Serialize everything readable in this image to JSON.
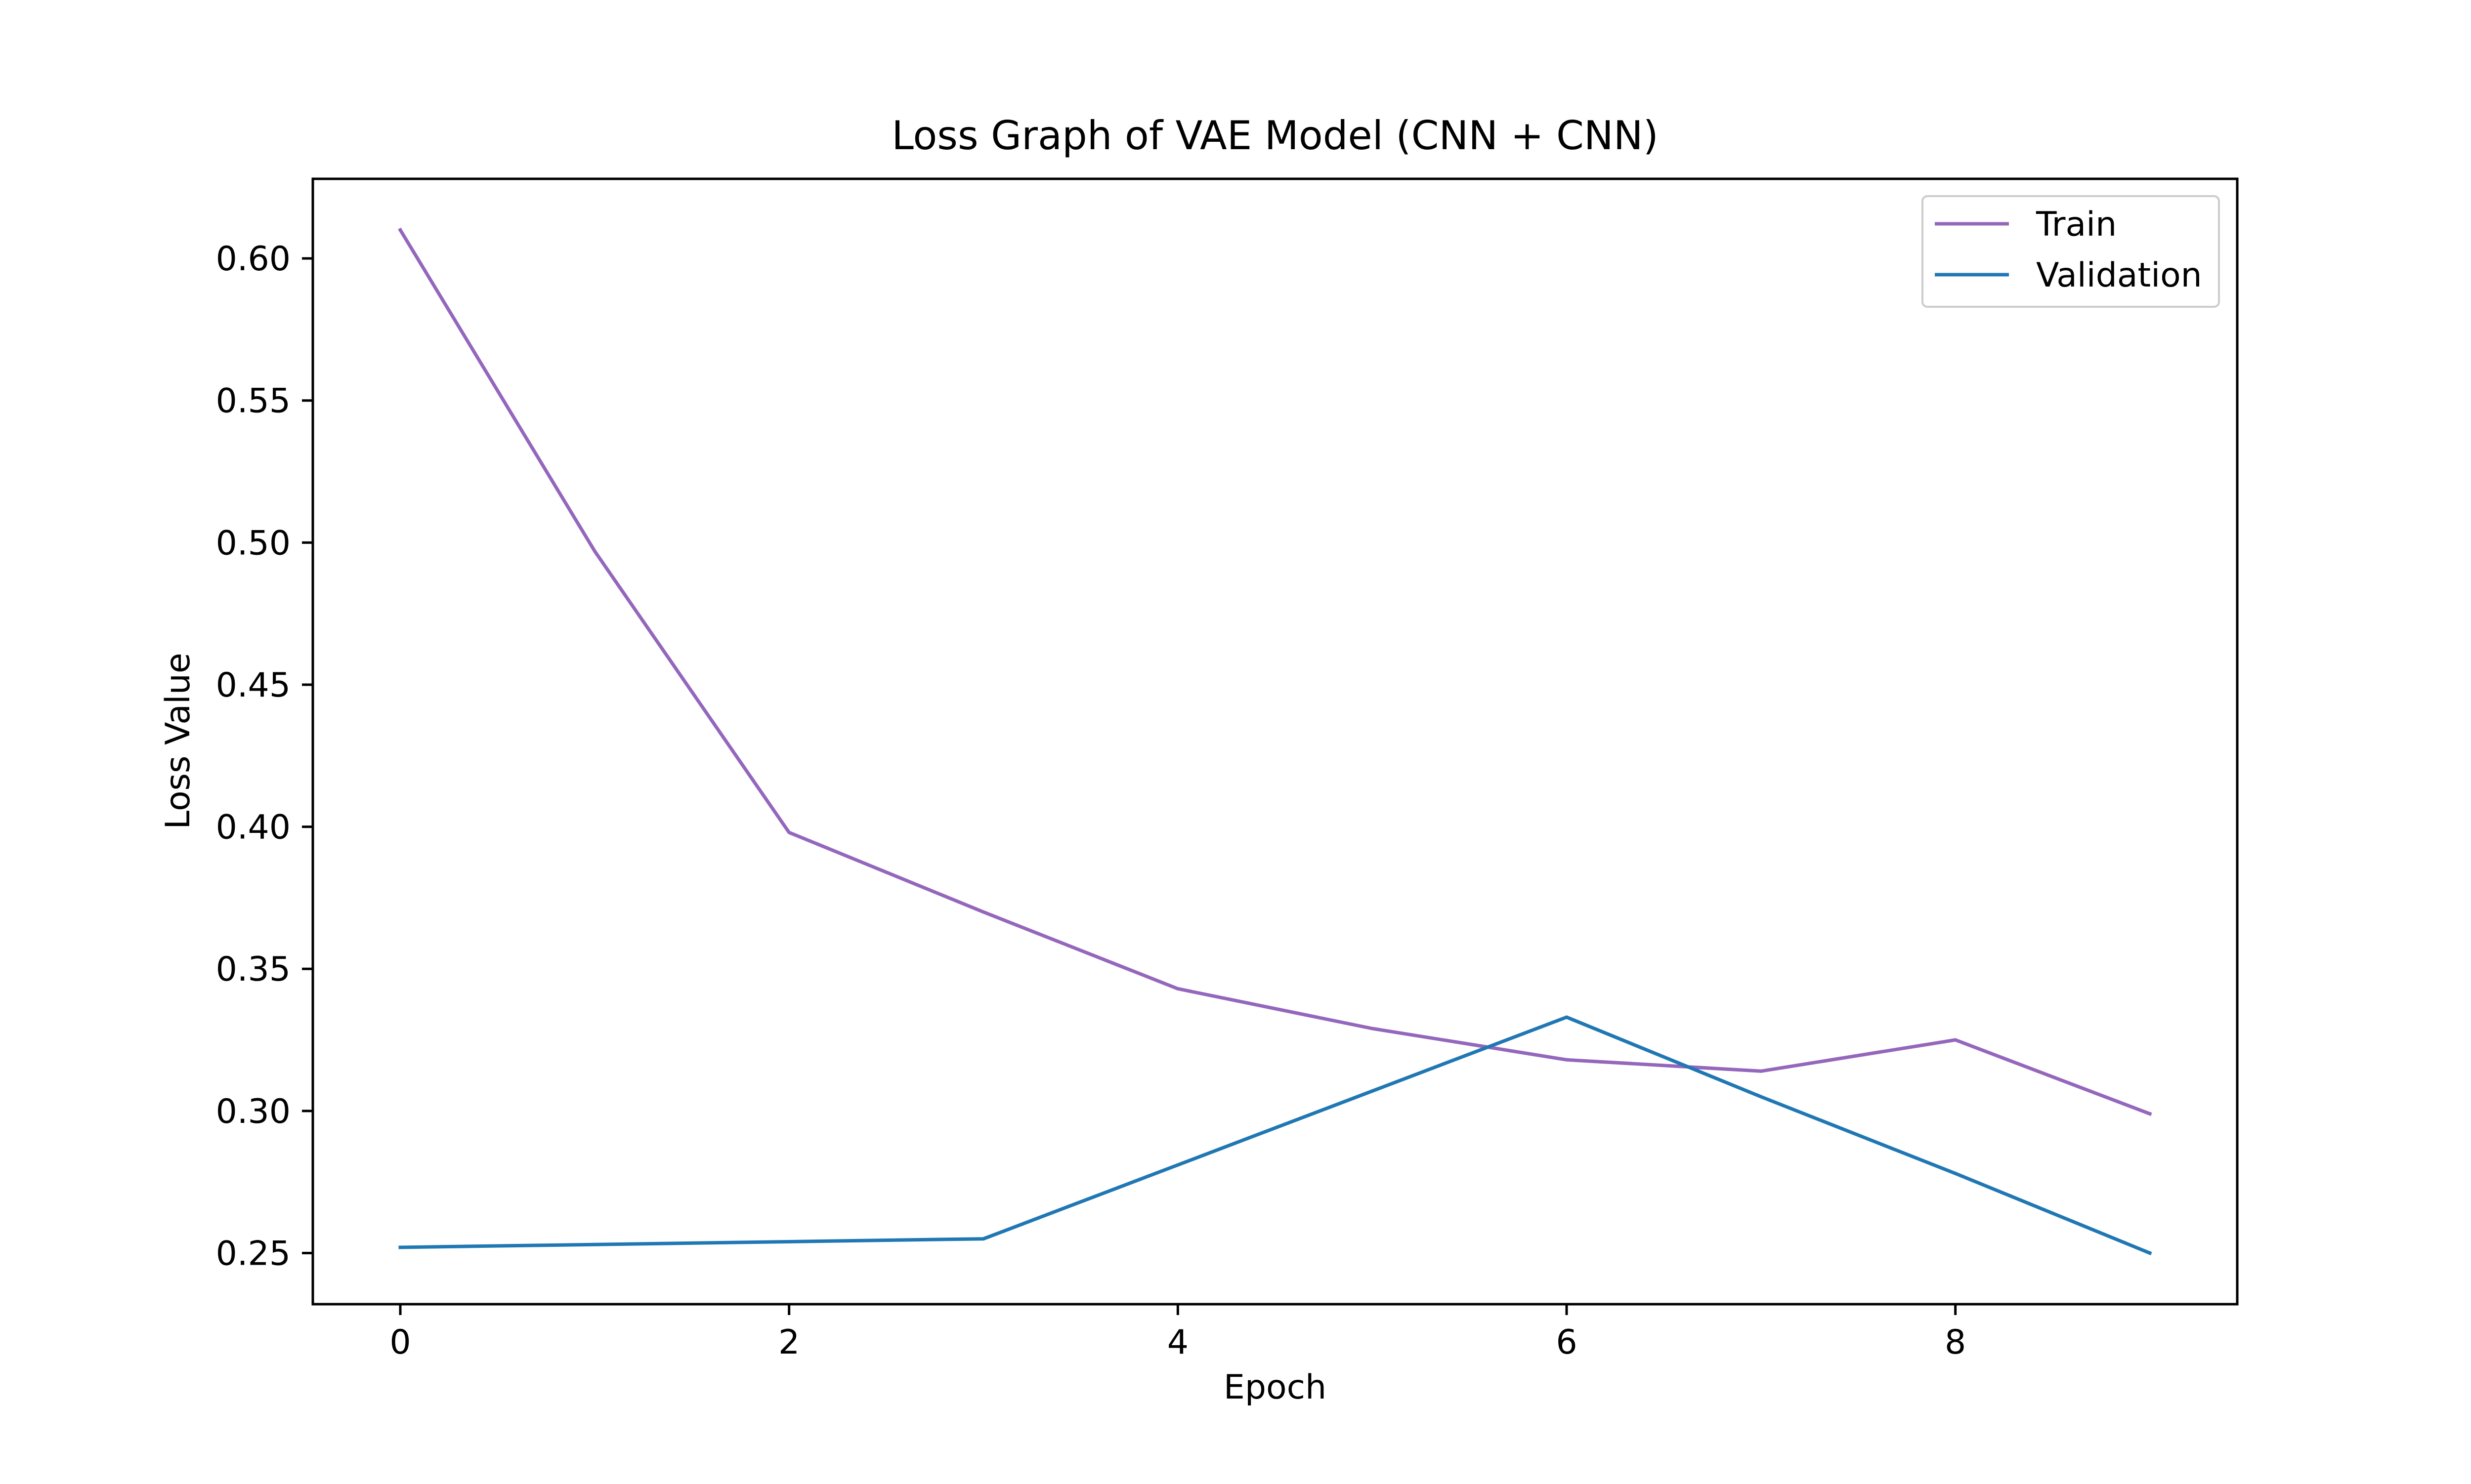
{
  "chart_data": {
    "type": "line",
    "title": "Loss Graph of VAE Model (CNN + CNN)",
    "xlabel": "Epoch",
    "ylabel": "Loss Value",
    "xlim": [
      -0.45,
      9.45
    ],
    "ylim": [
      0.232,
      0.628
    ],
    "xticks": [
      0,
      2,
      4,
      6,
      8
    ],
    "yticks": [
      0.25,
      0.3,
      0.35,
      0.4,
      0.45,
      0.5,
      0.55,
      0.6
    ],
    "xtick_labels": [
      "0",
      "2",
      "4",
      "6",
      "8"
    ],
    "ytick_labels": [
      "0.25",
      "0.30",
      "0.35",
      "0.40",
      "0.45",
      "0.50",
      "0.55",
      "0.60"
    ],
    "grid": false,
    "legend_position": "top-right",
    "x": [
      0,
      1,
      2,
      3,
      4,
      5,
      6,
      7,
      8,
      9
    ],
    "series": [
      {
        "name": "Train",
        "color": "#9467bd",
        "values": [
          0.61,
          0.497,
          0.398,
          0.37,
          0.343,
          0.329,
          0.318,
          0.314,
          0.325,
          0.299
        ]
      },
      {
        "name": "Validation",
        "color": "#1f77b4",
        "values": [
          0.252,
          0.253,
          0.254,
          0.255,
          0.281,
          0.307,
          0.333,
          0.305,
          0.278,
          0.25
        ]
      }
    ]
  }
}
